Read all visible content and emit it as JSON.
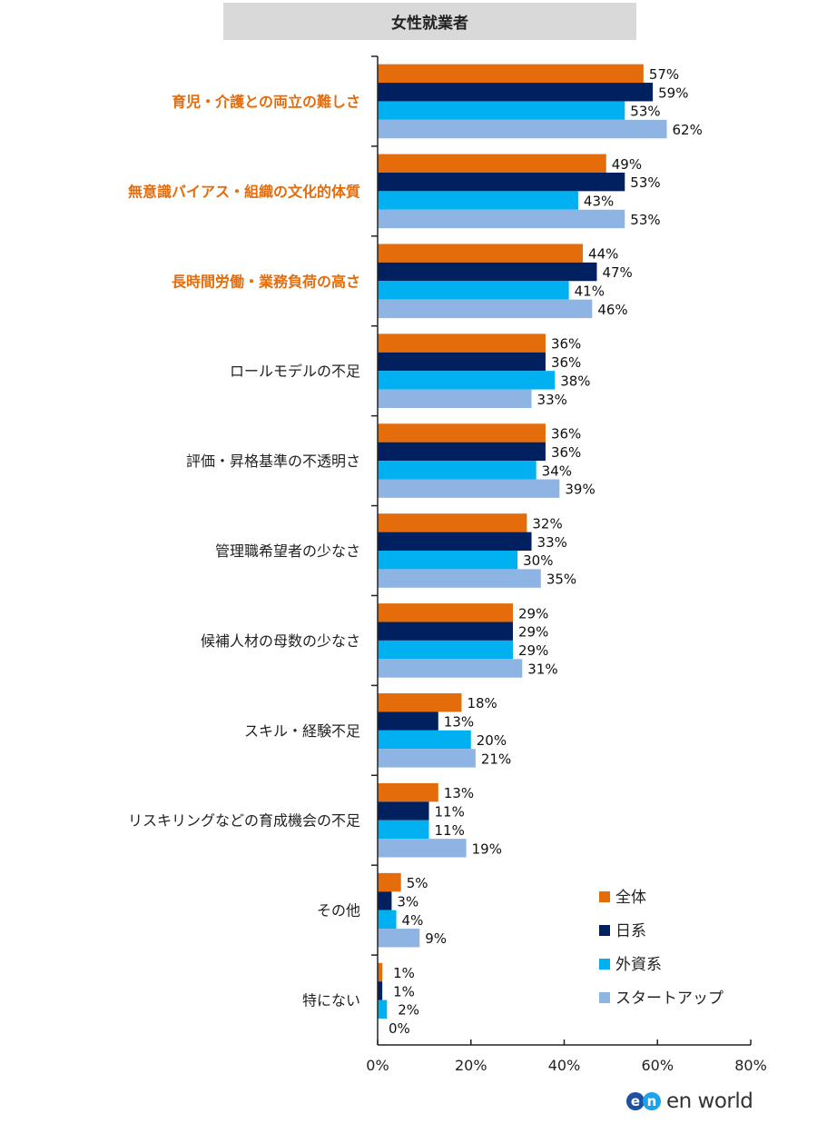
{
  "chart_data": {
    "type": "bar",
    "orientation": "horizontal",
    "title": "女性就業者",
    "categories": [
      "育児・介護との両立の難しさ",
      "無意識バイアス・組織の文化的体質",
      "長時間労働・業務負荷の高さ",
      "ロールモデルの不足",
      "評価・昇格基準の不透明さ",
      "管理職希望者の少なさ",
      "候補人材の母数の少なさ",
      "スキル・経験不足",
      "リスキリングなどの育成機会の不足",
      "その他",
      "特にない"
    ],
    "highlighted_categories": [
      0,
      1,
      2
    ],
    "highlight_color": "#E46C0A",
    "series": [
      {
        "name": "全体",
        "color": "#E46C0A",
        "values": [
          57,
          49,
          44,
          36,
          36,
          32,
          29,
          18,
          13,
          5,
          1
        ]
      },
      {
        "name": "日系",
        "color": "#002060",
        "values": [
          59,
          53,
          47,
          36,
          36,
          33,
          29,
          13,
          11,
          3,
          1
        ]
      },
      {
        "name": "外資系",
        "color": "#00B0F0",
        "values": [
          53,
          43,
          41,
          38,
          34,
          30,
          29,
          20,
          11,
          4,
          2
        ]
      },
      {
        "name": "スタートアップ",
        "color": "#8EB4E3",
        "values": [
          62,
          53,
          46,
          33,
          39,
          35,
          31,
          21,
          19,
          9,
          0
        ]
      }
    ],
    "value_format": "%",
    "xlim": [
      0,
      80
    ],
    "xticks": [
      "0%",
      "20%",
      "40%",
      "60%",
      "80%"
    ],
    "grid": false,
    "legend_position": "bottom-right"
  },
  "logo": {
    "mark_left": "e",
    "mark_right": "n",
    "text": "en world"
  }
}
